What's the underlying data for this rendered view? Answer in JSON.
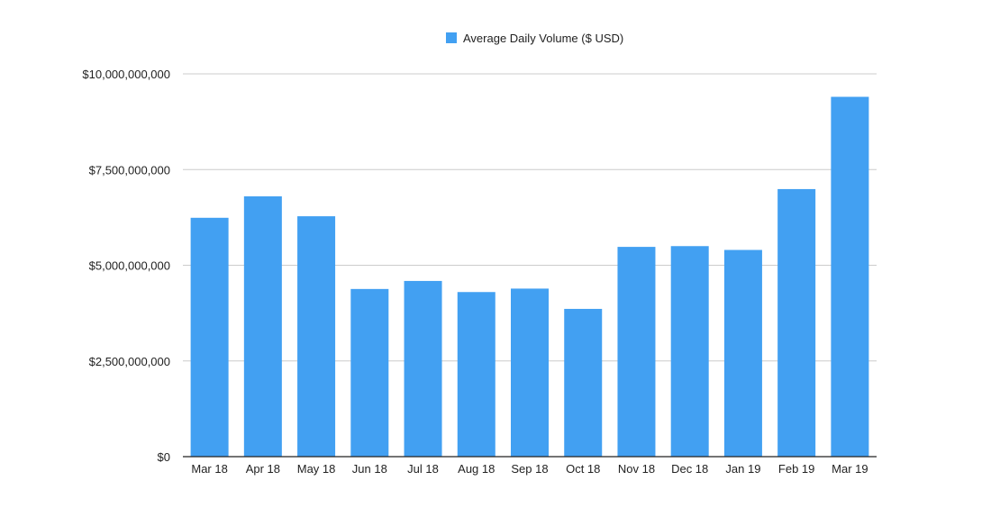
{
  "chart_data": {
    "type": "bar",
    "categories": [
      "Mar 18",
      "Apr 18",
      "May 18",
      "Jun 18",
      "Jul 18",
      "Aug 18",
      "Sep 18",
      "Oct 18",
      "Nov 18",
      "Dec 18",
      "Jan 19",
      "Feb 19",
      "Mar 19"
    ],
    "series": [
      {
        "name": "Average Daily Volume ($ USD)",
        "color": "#42a0f2",
        "values": [
          6240000000,
          6800000000,
          6280000000,
          4380000000,
          4590000000,
          4300000000,
          4390000000,
          3860000000,
          5480000000,
          5500000000,
          5400000000,
          6990000000,
          9400000000
        ]
      }
    ],
    "yticks": [
      {
        "value": 0,
        "label": "$0"
      },
      {
        "value": 2500000000,
        "label": "$2,500,000,000"
      },
      {
        "value": 5000000000,
        "label": "$5,000,000,000"
      },
      {
        "value": 7500000000,
        "label": "$7,500,000,000"
      },
      {
        "value": 10000000000,
        "label": "$10,000,000,000"
      }
    ],
    "ylim": [
      0,
      10000000000
    ],
    "grid": true,
    "legend_position": "top-center"
  }
}
